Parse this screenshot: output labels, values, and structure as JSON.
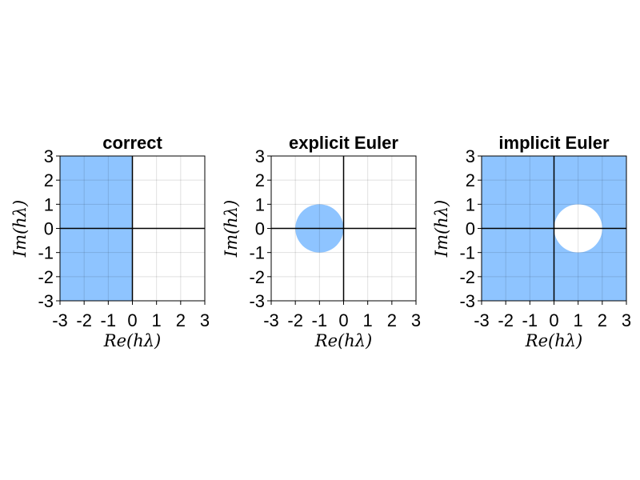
{
  "chart_data": [
    {
      "type": "region",
      "title": "correct",
      "xlabel": "Re(hλ)",
      "ylabel": "Im(hλ)",
      "xlim": [
        -3,
        3
      ],
      "ylim": [
        -3,
        3
      ],
      "xticks": [
        "-3",
        "-2",
        "-1",
        "0",
        "1",
        "2",
        "3"
      ],
      "yticks": [
        "-3",
        "-2",
        "-1",
        "0",
        "1",
        "2",
        "3"
      ],
      "grid": true,
      "fill_color": "#8ec4ff",
      "region": {
        "shape": "half-plane",
        "condition": "Re(hλ) ≤ 0"
      }
    },
    {
      "type": "region",
      "title": "explicit Euler",
      "xlabel": "Re(hλ)",
      "ylabel": "Im(hλ)",
      "xlim": [
        -3,
        3
      ],
      "ylim": [
        -3,
        3
      ],
      "xticks": [
        "-3",
        "-2",
        "-1",
        "0",
        "1",
        "2",
        "3"
      ],
      "yticks": [
        "-3",
        "-2",
        "-1",
        "0",
        "1",
        "2",
        "3"
      ],
      "grid": true,
      "fill_color": "#8ec4ff",
      "region": {
        "shape": "disk",
        "center": [
          -1,
          0
        ],
        "radius": 1
      }
    },
    {
      "type": "region",
      "title": "implicit Euler",
      "xlabel": "Re(hλ)",
      "ylabel": "Im(hλ)",
      "xlim": [
        -3,
        3
      ],
      "ylim": [
        -3,
        3
      ],
      "xticks": [
        "-3",
        "-2",
        "-1",
        "0",
        "1",
        "2",
        "3"
      ],
      "yticks": [
        "-3",
        "-2",
        "-1",
        "0",
        "1",
        "2",
        "3"
      ],
      "grid": true,
      "fill_color": "#8ec4ff",
      "region": {
        "shape": "outside-disk",
        "center": [
          1,
          0
        ],
        "radius": 1
      }
    }
  ]
}
